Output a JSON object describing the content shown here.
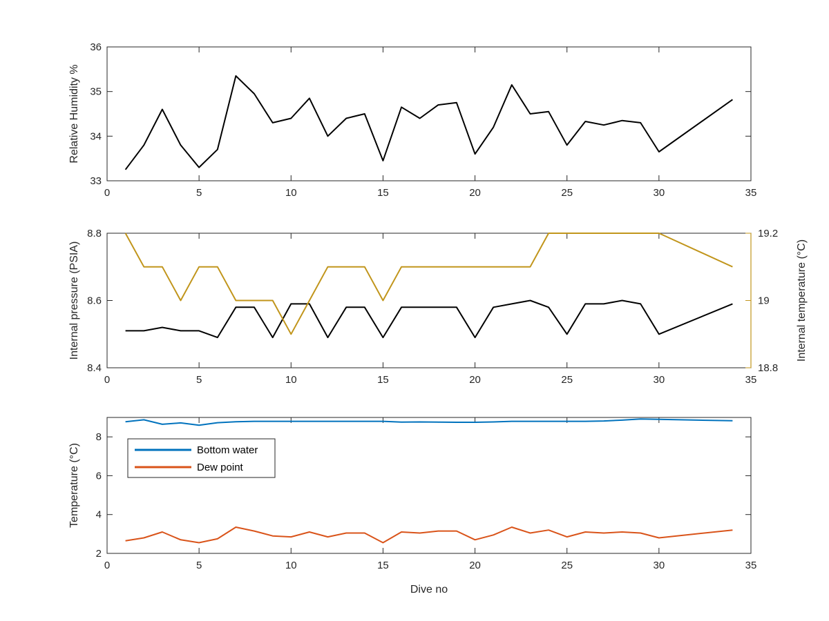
{
  "colors": {
    "black": "#000000",
    "gold": "#C1951B",
    "blue": "#0072BD",
    "orange": "#D95319",
    "axis": "#262626"
  },
  "chart_data": [
    {
      "type": "line",
      "xlim": [
        0,
        35
      ],
      "ylim": [
        33,
        36
      ],
      "x_ticks": [
        "0",
        "5",
        "10",
        "15",
        "20",
        "25",
        "30",
        "35"
      ],
      "y_ticks": [
        "33",
        "34",
        "35",
        "36"
      ],
      "xlabel": "",
      "ylabel": "Relative Humidity %",
      "series": [
        {
          "color": "#000000",
          "x": [
            1,
            2,
            3,
            4,
            5,
            6,
            7,
            8,
            9,
            10,
            11,
            12,
            13,
            14,
            15,
            16,
            17,
            18,
            19,
            20,
            21,
            22,
            23,
            24,
            25,
            26,
            27,
            28,
            29,
            30,
            34
          ],
          "values": [
            33.25,
            33.8,
            34.6,
            33.8,
            33.3,
            33.7,
            35.35,
            34.95,
            34.3,
            34.4,
            34.85,
            34.0,
            34.4,
            34.5,
            33.45,
            34.65,
            34.4,
            34.7,
            34.75,
            33.6,
            34.2,
            35.15,
            34.5,
            34.55,
            33.8,
            34.33,
            34.25,
            34.35,
            34.3,
            33.65,
            34.82
          ]
        }
      ]
    },
    {
      "type": "line",
      "xlim": [
        0,
        35
      ],
      "ylim": [
        8.4,
        8.8
      ],
      "y2lim": [
        18.8,
        19.2
      ],
      "x_ticks": [
        "0",
        "5",
        "10",
        "15",
        "20",
        "25",
        "30",
        "35"
      ],
      "y_ticks": [
        "8.4",
        "8.6",
        "8.8"
      ],
      "y2_ticks": [
        "18.8",
        "19",
        "19.2"
      ],
      "xlabel": "",
      "ylabel": "Internal pressure (PSIA)",
      "y2label": "Internal temperature (°C)",
      "series": [
        {
          "color": "#000000",
          "axis": "left",
          "x": [
            1,
            2,
            3,
            4,
            5,
            6,
            7,
            8,
            9,
            10,
            11,
            12,
            13,
            14,
            15,
            16,
            17,
            18,
            19,
            20,
            21,
            22,
            23,
            24,
            25,
            26,
            27,
            28,
            29,
            30,
            34
          ],
          "values": [
            8.51,
            8.51,
            8.52,
            8.51,
            8.51,
            8.49,
            8.58,
            8.58,
            8.49,
            8.59,
            8.59,
            8.49,
            8.58,
            8.58,
            8.49,
            8.58,
            8.58,
            8.58,
            8.58,
            8.49,
            8.58,
            8.59,
            8.6,
            8.58,
            8.5,
            8.59,
            8.59,
            8.6,
            8.59,
            8.5,
            8.59
          ]
        },
        {
          "color": "#C1951B",
          "axis": "right",
          "x": [
            1,
            2,
            3,
            4,
            5,
            6,
            7,
            8,
            9,
            10,
            11,
            12,
            13,
            14,
            15,
            16,
            17,
            18,
            19,
            20,
            21,
            22,
            23,
            24,
            25,
            26,
            27,
            28,
            29,
            30,
            34
          ],
          "values": [
            19.2,
            19.1,
            19.1,
            19.0,
            19.1,
            19.1,
            19.0,
            19.0,
            19.0,
            18.9,
            19.0,
            19.1,
            19.1,
            19.1,
            19.0,
            19.1,
            19.1,
            19.1,
            19.1,
            19.1,
            19.1,
            19.1,
            19.1,
            19.2,
            19.2,
            19.2,
            19.2,
            19.2,
            19.2,
            19.2,
            19.1
          ]
        }
      ]
    },
    {
      "type": "line",
      "xlim": [
        0,
        35
      ],
      "ylim": [
        2,
        9
      ],
      "x_ticks": [
        "0",
        "5",
        "10",
        "15",
        "20",
        "25",
        "30",
        "35"
      ],
      "y_ticks": [
        "2",
        "4",
        "6",
        "8"
      ],
      "xlabel": "Dive no",
      "ylabel": "Temperature (°C)",
      "legend_position": "top-left",
      "series": [
        {
          "name": "Bottom water",
          "color": "#0072BD",
          "x": [
            1,
            2,
            3,
            4,
            5,
            6,
            7,
            8,
            9,
            10,
            11,
            12,
            13,
            14,
            15,
            16,
            17,
            18,
            19,
            20,
            21,
            22,
            23,
            24,
            25,
            26,
            27,
            28,
            29,
            30,
            34
          ],
          "values": [
            8.78,
            8.88,
            8.65,
            8.72,
            8.6,
            8.73,
            8.78,
            8.8,
            8.8,
            8.8,
            8.8,
            8.8,
            8.8,
            8.8,
            8.8,
            8.76,
            8.77,
            8.76,
            8.75,
            8.75,
            8.77,
            8.8,
            8.8,
            8.8,
            8.8,
            8.8,
            8.82,
            8.86,
            8.92,
            8.9,
            8.83
          ]
        },
        {
          "name": "Dew point",
          "color": "#D95319",
          "x": [
            1,
            2,
            3,
            4,
            5,
            6,
            7,
            8,
            9,
            10,
            11,
            12,
            13,
            14,
            15,
            16,
            17,
            18,
            19,
            20,
            21,
            22,
            23,
            24,
            25,
            26,
            27,
            28,
            29,
            30,
            34
          ],
          "values": [
            2.65,
            2.8,
            3.1,
            2.7,
            2.55,
            2.75,
            3.35,
            3.15,
            2.9,
            2.85,
            3.1,
            2.85,
            3.05,
            3.05,
            2.55,
            3.1,
            3.05,
            3.15,
            3.15,
            2.7,
            2.95,
            3.35,
            3.05,
            3.2,
            2.85,
            3.1,
            3.05,
            3.1,
            3.05,
            2.8,
            3.2
          ]
        }
      ]
    }
  ]
}
